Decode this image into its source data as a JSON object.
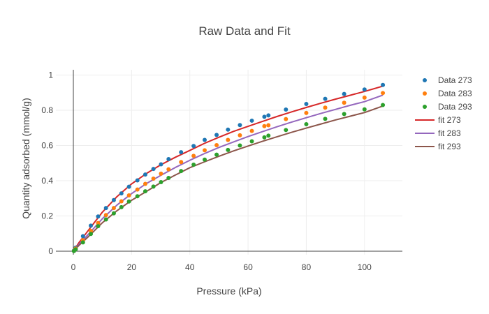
{
  "chart_data": {
    "type": "scatter",
    "title": "Raw Data and Fit",
    "xlabel": "Pressure (kPa)",
    "ylabel": "Quantity adsorbed (mmol/g)",
    "xlim": [
      -6,
      113
    ],
    "ylim": [
      -0.02,
      1.03
    ],
    "x_ticks": [
      0,
      20,
      40,
      60,
      80,
      100
    ],
    "y_ticks": [
      0,
      0.2,
      0.4,
      0.6,
      0.8,
      1
    ],
    "x_tick_labels": [
      "0",
      "20",
      "40",
      "60",
      "80",
      "100"
    ],
    "y_tick_labels": [
      "0",
      "0.2",
      "0.4",
      "0.6",
      "0.8",
      "1"
    ],
    "grid": true,
    "legend_position": "right",
    "series": [
      {
        "name": "Data 273",
        "mode": "markers",
        "color": "#1f77b4",
        "x": [
          0.2,
          0.8,
          3.3,
          6.0,
          8.5,
          11.2,
          13.9,
          16.5,
          19.1,
          22.0,
          24.7,
          27.5,
          30.1,
          32.7,
          37.0,
          41.3,
          45.1,
          49.2,
          53.1,
          57.2,
          61.3,
          65.6,
          67.0,
          73.0,
          80.0,
          86.5,
          93.0,
          100.0,
          106.3
        ],
        "y": [
          0.003,
          0.02,
          0.085,
          0.145,
          0.197,
          0.245,
          0.29,
          0.328,
          0.366,
          0.402,
          0.435,
          0.467,
          0.493,
          0.523,
          0.562,
          0.597,
          0.632,
          0.66,
          0.69,
          0.716,
          0.741,
          0.763,
          0.771,
          0.804,
          0.836,
          0.865,
          0.893,
          0.918,
          0.944
        ]
      },
      {
        "name": "Data 283",
        "mode": "markers",
        "color": "#ff7f0e",
        "x": [
          0.2,
          0.8,
          3.3,
          6.0,
          8.5,
          11.2,
          13.9,
          16.5,
          19.1,
          22.0,
          24.7,
          27.5,
          30.1,
          32.7,
          37.0,
          41.3,
          45.1,
          49.2,
          53.1,
          57.2,
          61.3,
          65.6,
          67.0,
          73.0,
          80.0,
          86.5,
          93.0,
          100.0,
          106.3
        ],
        "y": [
          0.002,
          0.015,
          0.062,
          0.115,
          0.16,
          0.205,
          0.245,
          0.283,
          0.317,
          0.35,
          0.382,
          0.412,
          0.44,
          0.465,
          0.506,
          0.541,
          0.573,
          0.602,
          0.632,
          0.658,
          0.683,
          0.71,
          0.715,
          0.75,
          0.785,
          0.815,
          0.843,
          0.872,
          0.898
        ]
      },
      {
        "name": "Data 293",
        "mode": "markers",
        "color": "#2ca02c",
        "x": [
          0.2,
          0.8,
          3.3,
          6.0,
          8.5,
          11.2,
          13.9,
          16.5,
          19.1,
          22.0,
          24.7,
          27.5,
          30.1,
          32.7,
          37.0,
          41.3,
          45.1,
          49.2,
          53.1,
          57.2,
          61.3,
          65.6,
          67.0,
          73.0,
          80.0,
          86.5,
          93.0,
          100.0,
          106.3
        ],
        "y": [
          0.001,
          0.01,
          0.05,
          0.098,
          0.142,
          0.18,
          0.215,
          0.25,
          0.282,
          0.312,
          0.34,
          0.367,
          0.392,
          0.416,
          0.455,
          0.491,
          0.52,
          0.548,
          0.575,
          0.6,
          0.624,
          0.646,
          0.656,
          0.688,
          0.721,
          0.751,
          0.779,
          0.805,
          0.83
        ]
      },
      {
        "name": "fit 273",
        "mode": "lines",
        "color": "#d62728",
        "x": [
          0,
          2,
          5,
          10,
          15,
          20,
          25,
          30,
          35,
          40,
          45,
          50,
          55,
          60,
          65,
          70,
          75,
          80,
          85,
          90,
          95,
          100,
          106.3
        ],
        "y": [
          0,
          0.05,
          0.115,
          0.222,
          0.31,
          0.382,
          0.44,
          0.49,
          0.533,
          0.572,
          0.612,
          0.647,
          0.68,
          0.709,
          0.737,
          0.765,
          0.791,
          0.816,
          0.84,
          0.863,
          0.885,
          0.907,
          0.937
        ]
      },
      {
        "name": "fit 283",
        "mode": "lines",
        "color": "#9467bd",
        "x": [
          0,
          2,
          5,
          10,
          15,
          20,
          25,
          30,
          35,
          40,
          45,
          50,
          55,
          60,
          65,
          70,
          75,
          80,
          85,
          90,
          95,
          100,
          106.3
        ],
        "y": [
          0,
          0.04,
          0.093,
          0.185,
          0.262,
          0.327,
          0.383,
          0.43,
          0.475,
          0.516,
          0.554,
          0.589,
          0.62,
          0.651,
          0.679,
          0.707,
          0.733,
          0.758,
          0.782,
          0.805,
          0.828,
          0.849,
          0.886
        ]
      },
      {
        "name": "fit 293",
        "mode": "lines",
        "color": "#8c564b",
        "x": [
          0,
          2,
          5,
          10,
          15,
          20,
          25,
          30,
          35,
          40,
          45,
          50,
          55,
          60,
          65,
          70,
          75,
          80,
          85,
          90,
          95,
          100,
          106.3
        ],
        "y": [
          0,
          0.034,
          0.08,
          0.162,
          0.23,
          0.289,
          0.338,
          0.389,
          0.432,
          0.474,
          0.507,
          0.539,
          0.569,
          0.597,
          0.624,
          0.65,
          0.675,
          0.699,
          0.722,
          0.745,
          0.766,
          0.787,
          0.824
        ]
      }
    ]
  }
}
